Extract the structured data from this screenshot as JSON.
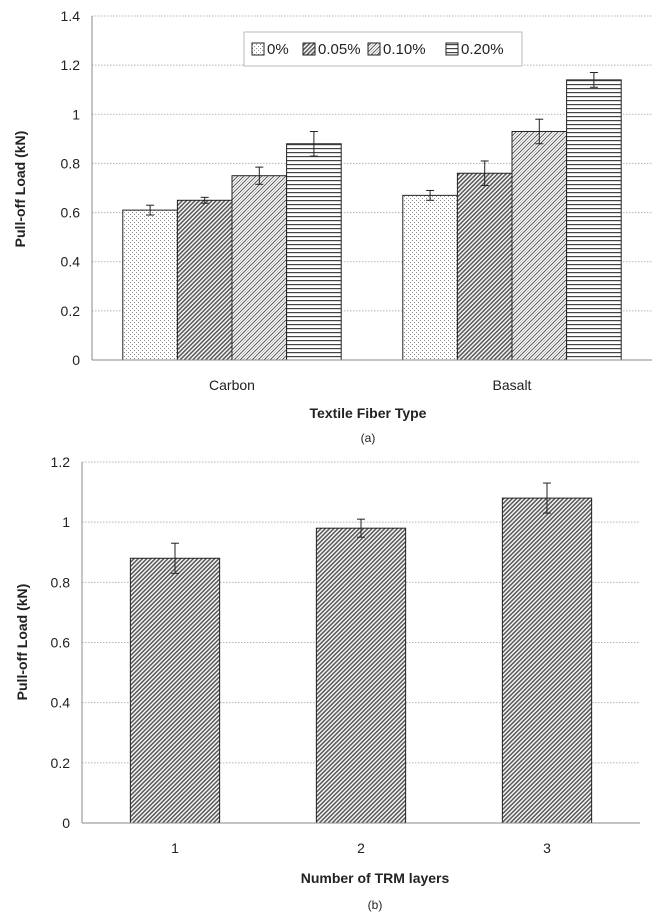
{
  "chart_data": [
    {
      "type": "bar",
      "caption": "(a)",
      "xlabel": "Textile Fiber Type",
      "ylabel": "Pull-off Load (kN)",
      "categories": [
        "Carbon",
        "Basalt"
      ],
      "ylim": [
        0,
        1.4
      ],
      "yticks": [
        "0",
        "0.2",
        "0.4",
        "0.6",
        "0.8",
        "1",
        "1.2",
        "1.4"
      ],
      "grid": true,
      "legend": "top-center",
      "series": [
        {
          "name": "0%",
          "values": [
            0.61,
            0.67
          ],
          "errors": [
            0.02,
            0.02
          ],
          "pattern": "dots"
        },
        {
          "name": "0.05%",
          "values": [
            0.65,
            0.76
          ],
          "errors": [
            0.012,
            0.05
          ],
          "pattern": "diag-dense"
        },
        {
          "name": "0.10%",
          "values": [
            0.75,
            0.93
          ],
          "errors": [
            0.035,
            0.05
          ],
          "pattern": "brick"
        },
        {
          "name": "0.20%",
          "values": [
            0.88,
            1.14
          ],
          "errors": [
            0.05,
            0.03
          ],
          "pattern": "hlines"
        }
      ]
    },
    {
      "type": "bar",
      "caption": "(b)",
      "xlabel": "Number of TRM layers",
      "ylabel": "Pull-off Load (kN)",
      "categories": [
        "1",
        "2",
        "3"
      ],
      "ylim": [
        0,
        1.2
      ],
      "yticks": [
        "0",
        "0.2",
        "0.4",
        "0.6",
        "0.8",
        "1",
        "1.2"
      ],
      "grid": true,
      "series": [
        {
          "values": [
            0.88,
            0.98,
            1.08
          ],
          "errors": [
            0.05,
            0.03,
            0.05
          ],
          "pattern": "diag-dense"
        }
      ]
    }
  ]
}
